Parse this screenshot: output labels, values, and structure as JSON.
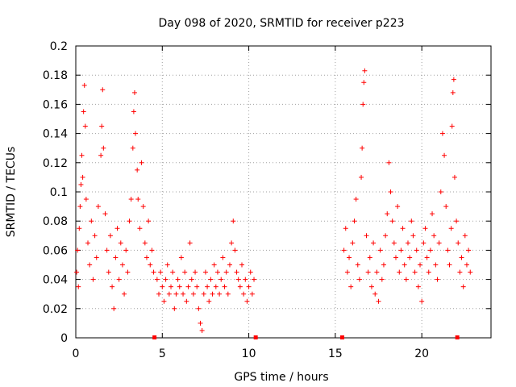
{
  "chart_data": {
    "type": "scatter",
    "title": "Day 098 of 2020, SRMTID for receiver p223",
    "xlabel": "GPS time / hours",
    "ylabel": "SRMTID / TECUs",
    "xlim": [
      0,
      24
    ],
    "ylim": [
      0,
      0.2
    ],
    "xticks": [
      0,
      5,
      10,
      15,
      20
    ],
    "xtick_labels": [
      "0",
      "5",
      "10",
      "15",
      "20"
    ],
    "yticks": [
      0,
      0.02,
      0.04,
      0.06,
      0.08,
      0.1,
      0.12,
      0.14,
      0.16,
      0.18,
      0.2
    ],
    "ytick_labels": [
      "0",
      "0.02",
      "0.04",
      "0.06",
      "0.08",
      "0.1",
      "0.12",
      "0.14",
      "0.16",
      "0.18",
      "0.2"
    ],
    "grid": true,
    "marker": "+",
    "color": "#ff0000",
    "data_gap_markers_x": [
      4.55,
      10.4,
      15.4,
      22.05
    ],
    "series": [
      {
        "name": "SRMTID",
        "description_of_trend": "dense cluster 0.03-0.08 from 0-4.6 h with spikes near 0.5 h (0.175), 1.5 h (0.17), 3.4 h (0.168); low cluster 0.02-0.05 from 4.6-10.4 h; no data 10.4-15.4 h; cluster 0.03-0.09 from 15.4-22.9 h with spikes near 16.5 h (0.183) and 21.8 h (0.177)",
        "points": [
          [
            0.05,
            0.045
          ],
          [
            0.1,
            0.06
          ],
          [
            0.15,
            0.035
          ],
          [
            0.2,
            0.075
          ],
          [
            0.25,
            0.09
          ],
          [
            0.3,
            0.105
          ],
          [
            0.35,
            0.125
          ],
          [
            0.4,
            0.11
          ],
          [
            0.45,
            0.155
          ],
          [
            0.5,
            0.173
          ],
          [
            0.55,
            0.145
          ],
          [
            0.6,
            0.095
          ],
          [
            0.7,
            0.065
          ],
          [
            0.8,
            0.05
          ],
          [
            0.9,
            0.08
          ],
          [
            1.0,
            0.04
          ],
          [
            1.1,
            0.07
          ],
          [
            1.2,
            0.055
          ],
          [
            1.3,
            0.09
          ],
          [
            1.45,
            0.125
          ],
          [
            1.5,
            0.145
          ],
          [
            1.55,
            0.17
          ],
          [
            1.6,
            0.13
          ],
          [
            1.7,
            0.085
          ],
          [
            1.8,
            0.06
          ],
          [
            1.9,
            0.045
          ],
          [
            2.0,
            0.07
          ],
          [
            2.1,
            0.035
          ],
          [
            2.2,
            0.02
          ],
          [
            2.3,
            0.055
          ],
          [
            2.4,
            0.075
          ],
          [
            2.5,
            0.04
          ],
          [
            2.6,
            0.065
          ],
          [
            2.7,
            0.05
          ],
          [
            2.8,
            0.03
          ],
          [
            2.9,
            0.06
          ],
          [
            3.0,
            0.045
          ],
          [
            3.1,
            0.08
          ],
          [
            3.2,
            0.095
          ],
          [
            3.3,
            0.13
          ],
          [
            3.35,
            0.155
          ],
          [
            3.4,
            0.168
          ],
          [
            3.45,
            0.14
          ],
          [
            3.55,
            0.115
          ],
          [
            3.6,
            0.095
          ],
          [
            3.7,
            0.075
          ],
          [
            3.8,
            0.12
          ],
          [
            3.9,
            0.09
          ],
          [
            4.0,
            0.065
          ],
          [
            4.1,
            0.055
          ],
          [
            4.2,
            0.08
          ],
          [
            4.3,
            0.05
          ],
          [
            4.4,
            0.06
          ],
          [
            4.5,
            0.045
          ],
          [
            4.7,
            0.04
          ],
          [
            4.8,
            0.03
          ],
          [
            4.9,
            0.045
          ],
          [
            5.0,
            0.035
          ],
          [
            5.1,
            0.025
          ],
          [
            5.2,
            0.04
          ],
          [
            5.3,
            0.05
          ],
          [
            5.4,
            0.03
          ],
          [
            5.5,
            0.035
          ],
          [
            5.6,
            0.045
          ],
          [
            5.7,
            0.02
          ],
          [
            5.8,
            0.03
          ],
          [
            5.9,
            0.04
          ],
          [
            6.0,
            0.035
          ],
          [
            6.1,
            0.055
          ],
          [
            6.2,
            0.03
          ],
          [
            6.3,
            0.045
          ],
          [
            6.4,
            0.025
          ],
          [
            6.5,
            0.035
          ],
          [
            6.6,
            0.065
          ],
          [
            6.7,
            0.04
          ],
          [
            6.8,
            0.03
          ],
          [
            6.9,
            0.045
          ],
          [
            7.0,
            0.035
          ],
          [
            7.1,
            0.02
          ],
          [
            7.2,
            0.01
          ],
          [
            7.3,
            0.005
          ],
          [
            7.4,
            0.03
          ],
          [
            7.5,
            0.045
          ],
          [
            7.6,
            0.035
          ],
          [
            7.7,
            0.025
          ],
          [
            7.8,
            0.04
          ],
          [
            7.9,
            0.03
          ],
          [
            8.0,
            0.05
          ],
          [
            8.1,
            0.035
          ],
          [
            8.2,
            0.045
          ],
          [
            8.3,
            0.03
          ],
          [
            8.4,
            0.04
          ],
          [
            8.5,
            0.055
          ],
          [
            8.6,
            0.035
          ],
          [
            8.7,
            0.045
          ],
          [
            8.8,
            0.03
          ],
          [
            8.9,
            0.05
          ],
          [
            9.0,
            0.065
          ],
          [
            9.1,
            0.08
          ],
          [
            9.2,
            0.06
          ],
          [
            9.3,
            0.045
          ],
          [
            9.4,
            0.04
          ],
          [
            9.5,
            0.035
          ],
          [
            9.6,
            0.05
          ],
          [
            9.7,
            0.03
          ],
          [
            9.8,
            0.04
          ],
          [
            9.9,
            0.025
          ],
          [
            10.0,
            0.035
          ],
          [
            10.1,
            0.045
          ],
          [
            10.2,
            0.03
          ],
          [
            10.3,
            0.04
          ],
          [
            15.5,
            0.06
          ],
          [
            15.6,
            0.075
          ],
          [
            15.7,
            0.045
          ],
          [
            15.8,
            0.055
          ],
          [
            15.9,
            0.035
          ],
          [
            16.0,
            0.065
          ],
          [
            16.1,
            0.08
          ],
          [
            16.2,
            0.095
          ],
          [
            16.3,
            0.05
          ],
          [
            16.4,
            0.04
          ],
          [
            16.5,
            0.11
          ],
          [
            16.55,
            0.13
          ],
          [
            16.6,
            0.16
          ],
          [
            16.65,
            0.175
          ],
          [
            16.7,
            0.183
          ],
          [
            16.8,
            0.07
          ],
          [
            16.9,
            0.045
          ],
          [
            17.0,
            0.055
          ],
          [
            17.1,
            0.035
          ],
          [
            17.2,
            0.065
          ],
          [
            17.3,
            0.03
          ],
          [
            17.4,
            0.045
          ],
          [
            17.5,
            0.025
          ],
          [
            17.6,
            0.06
          ],
          [
            17.7,
            0.04
          ],
          [
            17.8,
            0.05
          ],
          [
            17.9,
            0.07
          ],
          [
            18.0,
            0.085
          ],
          [
            18.1,
            0.12
          ],
          [
            18.2,
            0.1
          ],
          [
            18.3,
            0.08
          ],
          [
            18.4,
            0.065
          ],
          [
            18.5,
            0.055
          ],
          [
            18.6,
            0.09
          ],
          [
            18.7,
            0.045
          ],
          [
            18.8,
            0.06
          ],
          [
            18.9,
            0.075
          ],
          [
            19.0,
            0.05
          ],
          [
            19.1,
            0.04
          ],
          [
            19.2,
            0.065
          ],
          [
            19.3,
            0.055
          ],
          [
            19.4,
            0.08
          ],
          [
            19.5,
            0.07
          ],
          [
            19.6,
            0.045
          ],
          [
            19.7,
            0.06
          ],
          [
            19.8,
            0.035
          ],
          [
            19.9,
            0.05
          ],
          [
            20.0,
            0.025
          ],
          [
            20.1,
            0.065
          ],
          [
            20.2,
            0.075
          ],
          [
            20.3,
            0.055
          ],
          [
            20.4,
            0.045
          ],
          [
            20.5,
            0.06
          ],
          [
            20.6,
            0.085
          ],
          [
            20.7,
            0.07
          ],
          [
            20.8,
            0.05
          ],
          [
            20.9,
            0.04
          ],
          [
            21.0,
            0.065
          ],
          [
            21.1,
            0.1
          ],
          [
            21.2,
            0.14
          ],
          [
            21.3,
            0.125
          ],
          [
            21.4,
            0.09
          ],
          [
            21.5,
            0.06
          ],
          [
            21.6,
            0.05
          ],
          [
            21.7,
            0.075
          ],
          [
            21.75,
            0.145
          ],
          [
            21.8,
            0.168
          ],
          [
            21.85,
            0.177
          ],
          [
            21.9,
            0.11
          ],
          [
            22.0,
            0.08
          ],
          [
            22.1,
            0.065
          ],
          [
            22.2,
            0.045
          ],
          [
            22.3,
            0.055
          ],
          [
            22.4,
            0.035
          ],
          [
            22.5,
            0.07
          ],
          [
            22.6,
            0.05
          ],
          [
            22.7,
            0.06
          ],
          [
            22.8,
            0.045
          ]
        ]
      }
    ]
  }
}
